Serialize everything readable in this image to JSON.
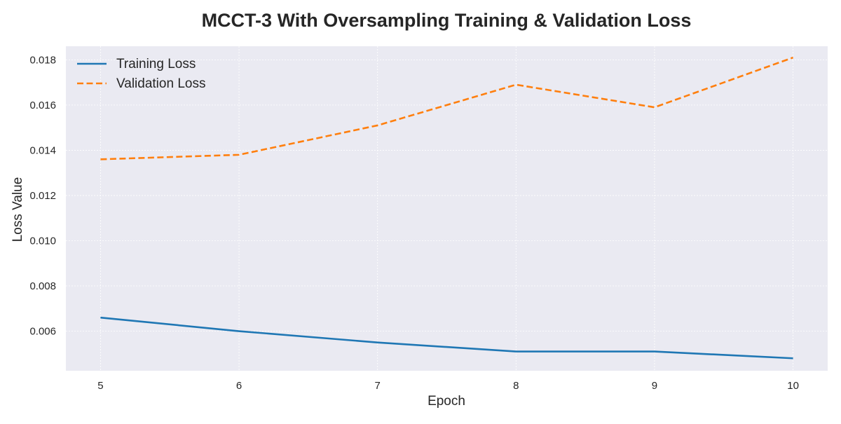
{
  "chart_data": {
    "type": "line",
    "title": "MCCT-3 With Oversampling Training & Validation Loss",
    "xlabel": "Epoch",
    "ylabel": "Loss Value",
    "x": [
      5,
      6,
      7,
      8,
      9,
      10
    ],
    "xticks": [
      "5",
      "6",
      "7",
      "8",
      "9",
      "10"
    ],
    "xlim": [
      4.75,
      10.25
    ],
    "yticks": [
      "0.006",
      "0.008",
      "0.010",
      "0.012",
      "0.014",
      "0.016",
      "0.018"
    ],
    "ylim": [
      0.00425,
      0.0186
    ],
    "grid": true,
    "legend_position": "top-left",
    "series": [
      {
        "name": "Training Loss",
        "values": [
          0.0066,
          0.006,
          0.0055,
          0.0051,
          0.0051,
          0.0048
        ],
        "color": "#1f77b4",
        "style": "solid"
      },
      {
        "name": "Validation Loss",
        "values": [
          0.0136,
          0.0138,
          0.0151,
          0.0169,
          0.0159,
          0.0181
        ],
        "color": "#ff7f0e",
        "style": "dashed"
      }
    ],
    "colors": {
      "plot_background": "#eaeaf2",
      "grid": "#ffffff",
      "text": "#262626"
    }
  }
}
